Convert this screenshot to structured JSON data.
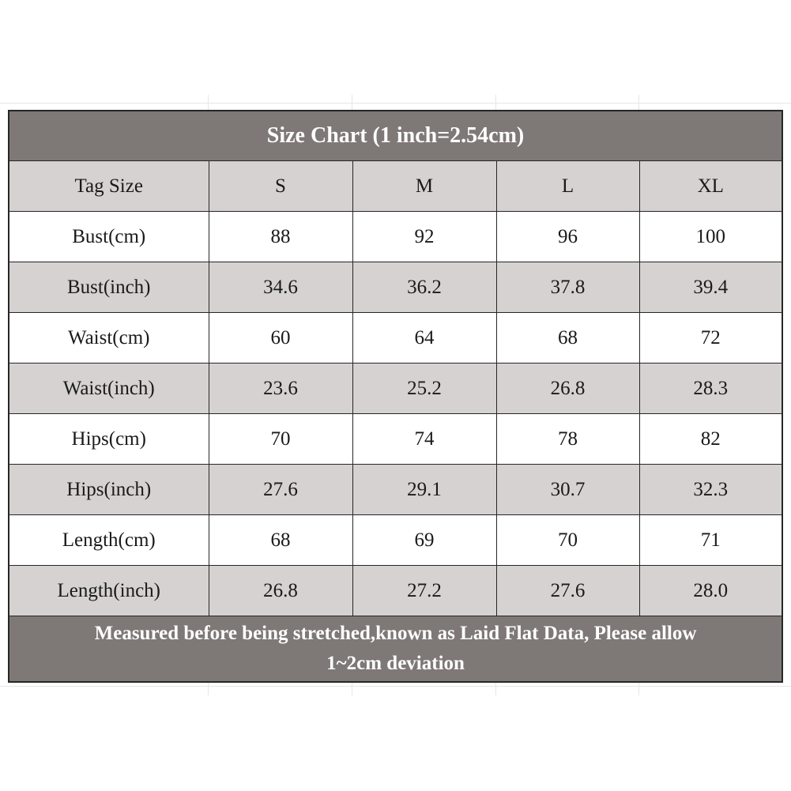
{
  "title": "Size Chart (1 inch=2.54cm)",
  "columns": [
    "Tag Size",
    "S",
    "M",
    "L",
    "XL"
  ],
  "rows": [
    {
      "label": "Bust(cm)",
      "values": [
        "88",
        "92",
        "96",
        "100"
      ]
    },
    {
      "label": "Bust(inch)",
      "values": [
        "34.6",
        "36.2",
        "37.8",
        "39.4"
      ]
    },
    {
      "label": "Waist(cm)",
      "values": [
        "60",
        "64",
        "68",
        "72"
      ]
    },
    {
      "label": "Waist(inch)",
      "values": [
        "23.6",
        "25.2",
        "26.8",
        "28.3"
      ]
    },
    {
      "label": "Hips(cm)",
      "values": [
        "70",
        "74",
        "78",
        "82"
      ]
    },
    {
      "label": "Hips(inch)",
      "values": [
        "27.6",
        "29.1",
        "30.7",
        "32.3"
      ]
    },
    {
      "label": "Length(cm)",
      "values": [
        "68",
        "69",
        "70",
        "71"
      ]
    },
    {
      "label": "Length(inch)",
      "values": [
        "26.8",
        "27.2",
        "27.6",
        "28.0"
      ]
    }
  ],
  "note_line1": "Measured before being stretched,known as Laid Flat Data, Please allow",
  "note_line2": "1~2cm deviation",
  "colors": {
    "banner": "#7e7876",
    "shaded_row": "#d5d2d1",
    "border": "#262626"
  }
}
